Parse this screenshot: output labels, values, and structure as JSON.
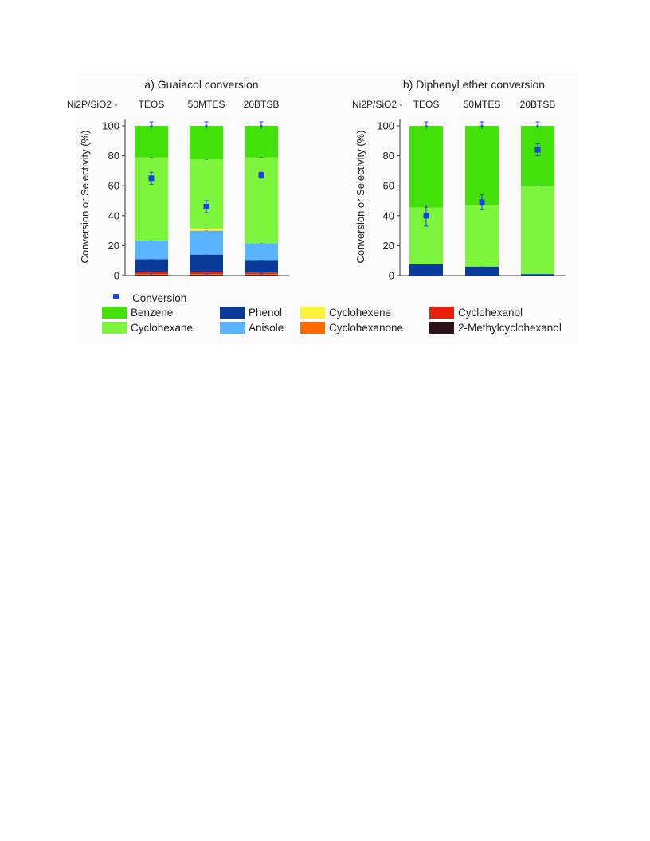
{
  "chart_data": [
    {
      "type": "bar",
      "stacked": true,
      "title": "a) Guaiacol conversion",
      "category_header": "Ni2P/SiO2 -",
      "categories": [
        "TEOS",
        "50MTES",
        "20BTSB"
      ],
      "ylabel": "Conversion or Selectivity (%)",
      "ylim": [
        0,
        100
      ],
      "yticks": [
        "0",
        "20",
        "40",
        "60",
        "80",
        "100"
      ],
      "series": [
        {
          "name": "2-Methylcyclohexanol",
          "color": "#2a1418",
          "values": [
            0.5,
            0.5,
            0.5
          ]
        },
        {
          "name": "Cyclohexanone",
          "color": "#ff6a00",
          "values": [
            0.5,
            0.5,
            0.5
          ]
        },
        {
          "name": "Cyclohexanol",
          "color": "#e8200c",
          "values": [
            1.5,
            1.5,
            1.0
          ]
        },
        {
          "name": "Phenol",
          "color": "#0a3a9a",
          "values": [
            8.5,
            11.5,
            8.0
          ]
        },
        {
          "name": "Anisole",
          "color": "#5ab4ff",
          "values": [
            12.5,
            16.0,
            11.5
          ]
        },
        {
          "name": "Cyclohexene",
          "color": "#fff03a",
          "values": [
            0.0,
            1.5,
            0.0
          ]
        },
        {
          "name": "Cyclohexane",
          "color": "#7cf53c",
          "values": [
            55.5,
            46.0,
            57.5
          ]
        },
        {
          "name": "Benzene",
          "color": "#43e00a",
          "values": [
            21.0,
            22.5,
            21.0
          ]
        }
      ],
      "conversion": {
        "name": "Conversion",
        "color": "#1e3fe8",
        "values": [
          65,
          46,
          67
        ],
        "errors": [
          4,
          4,
          2
        ]
      }
    },
    {
      "type": "bar",
      "stacked": true,
      "title": "b) Diphenyl ether conversion",
      "category_header": "Ni2P/SiO2 -",
      "categories": [
        "TEOS",
        "50MTES",
        "20BTSB"
      ],
      "ylabel": "Conversion or Selectivity (%)",
      "ylim": [
        0,
        100
      ],
      "yticks": [
        "0",
        "20",
        "40",
        "60",
        "80",
        "100"
      ],
      "series": [
        {
          "name": "Phenol",
          "color": "#0a3a9a",
          "values": [
            7.5,
            6.0,
            1.0
          ]
        },
        {
          "name": "Cyclohexane",
          "color": "#7cf53c",
          "values": [
            38.0,
            41.0,
            59.0
          ]
        },
        {
          "name": "Benzene",
          "color": "#43e00a",
          "values": [
            54.5,
            53.0,
            40.0
          ]
        }
      ],
      "conversion": {
        "name": "Conversion",
        "color": "#1e3fe8",
        "values": [
          40,
          49,
          84
        ],
        "errors": [
          7,
          5,
          4
        ]
      }
    }
  ],
  "legend": {
    "conversion_label": "Conversion",
    "items": [
      {
        "label": "Benzene",
        "color": "#43e00a"
      },
      {
        "label": "Phenol",
        "color": "#0a3a9a"
      },
      {
        "label": "Cyclohexene",
        "color": "#fff03a"
      },
      {
        "label": "Cyclohexanol",
        "color": "#e8200c"
      },
      {
        "label": "Cyclohexane",
        "color": "#7cf53c"
      },
      {
        "label": "Anisole",
        "color": "#5ab4ff"
      },
      {
        "label": "Cyclohexanone",
        "color": "#ff6a00"
      },
      {
        "label": "2-Methylcyclohexanol",
        "color": "#2a1418"
      }
    ]
  }
}
